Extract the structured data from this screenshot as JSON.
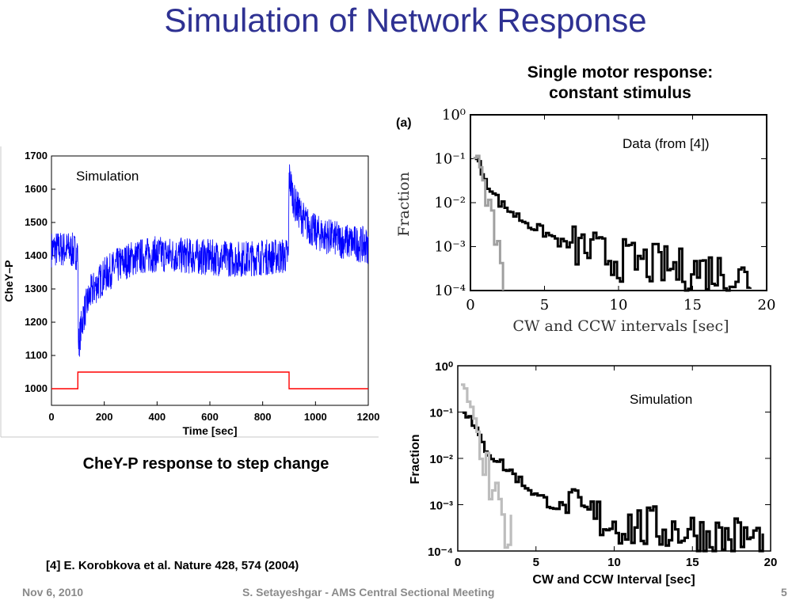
{
  "slide": {
    "title": "Simulation of Network Response",
    "right_heading_line1": "Single motor response:",
    "right_heading_line2": "constant stimulus",
    "left_caption": "CheY-P response to step change",
    "reference": "[4] E. Korobkova et al. Nature 428, 574 (2004)",
    "footer_date": "Nov 6, 2010",
    "footer_author": "S. Setayeshgar - AMS Central Sectional Meeting",
    "footer_page": "5"
  },
  "chart_data": [
    {
      "type": "line",
      "annotation": "Simulation",
      "xlabel": "Time [sec]",
      "ylabel": "CheY–P",
      "xlim": [
        0,
        1200
      ],
      "ylim": [
        950,
        1700
      ],
      "xticks": [
        0,
        200,
        400,
        600,
        800,
        1000,
        1200
      ],
      "yticks": [
        1000,
        1100,
        1200,
        1300,
        1400,
        1500,
        1600,
        1700
      ],
      "series": [
        {
          "color": "#0000ff",
          "style": "noisy",
          "x": [
            0,
            60,
            100,
            102,
            120,
            150,
            200,
            250,
            300,
            350,
            400,
            500,
            600,
            700,
            800,
            898,
            900,
            920,
            960,
            1000,
            1100,
            1200
          ],
          "y": [
            1420,
            1420,
            1410,
            1130,
            1220,
            1290,
            1340,
            1370,
            1390,
            1400,
            1405,
            1400,
            1395,
            1390,
            1395,
            1400,
            1640,
            1560,
            1500,
            1470,
            1445,
            1430
          ],
          "noise": 55
        },
        {
          "color": "#ff0000",
          "style": "step",
          "x": [
            0,
            100,
            100,
            900,
            900,
            1200
          ],
          "y": [
            1000,
            1000,
            1050,
            1050,
            1000,
            1000
          ]
        }
      ],
      "grid": false
    },
    {
      "type": "line",
      "panel_label": "(a)",
      "annotation": "Data (from [4])",
      "xlabel": "CW and CCW intervals [sec]",
      "ylabel": "Fraction",
      "xlim": [
        0,
        20
      ],
      "yscale": "log",
      "ylim": [
        0.0001,
        1
      ],
      "xticks": [
        0,
        5,
        10,
        15,
        20
      ],
      "ytick_labels": [
        "10⁰",
        "10⁻¹",
        "10⁻²",
        "10⁻³",
        "10⁻⁴"
      ],
      "series": [
        {
          "color": "#000000",
          "x": [
            0.3,
            0.5,
            1,
            1.5,
            2,
            3,
            4,
            5,
            6,
            7,
            8,
            9,
            10,
            12,
            14,
            16,
            18,
            19
          ],
          "y": [
            0.1,
            0.07,
            0.03,
            0.015,
            0.009,
            0.005,
            0.003,
            0.002,
            0.0012,
            0.001,
            0.0008,
            0.0006,
            0.0005,
            0.0004,
            0.0003,
            0.0003,
            0.0002,
            0.0002
          ]
        },
        {
          "color": "#a0a0a0",
          "x": [
            0.2,
            0.5,
            0.8,
            1.2,
            1.5,
            1.8,
            2.0,
            2.2
          ],
          "y": [
            0.12,
            0.1,
            0.04,
            0.01,
            0.003,
            0.001,
            0.0005,
            0.0002
          ]
        }
      ]
    },
    {
      "type": "line",
      "annotation": "Simulation",
      "xlabel": "CW and CCW Interval [sec]",
      "ylabel": "Fraction",
      "xlim": [
        0,
        20
      ],
      "yscale": "log",
      "ylim": [
        0.0001,
        1
      ],
      "xticks": [
        0,
        5,
        10,
        15,
        20
      ],
      "ytick_labels": [
        "10⁰",
        "10⁻¹",
        "10⁻²",
        "10⁻³",
        "10⁻⁴"
      ],
      "series": [
        {
          "color": "#000000",
          "x": [
            0.3,
            0.6,
            1,
            1.5,
            2,
            3,
            4,
            5,
            6,
            7,
            8,
            9,
            10,
            12,
            14,
            16,
            18,
            19.5
          ],
          "y": [
            0.12,
            0.08,
            0.04,
            0.02,
            0.012,
            0.006,
            0.003,
            0.0015,
            0.001,
            0.0008,
            0.0006,
            0.0005,
            0.0004,
            0.0003,
            0.0003,
            0.0002,
            0.0002,
            0.00015
          ]
        },
        {
          "color": "#bdbdbd",
          "x": [
            0.2,
            0.5,
            0.8,
            1.2,
            1.5,
            2.0,
            2.5,
            3.0,
            3.5
          ],
          "y": [
            0.3,
            0.25,
            0.1,
            0.03,
            0.008,
            0.002,
            0.0007,
            0.0003,
            0.0002
          ]
        }
      ]
    }
  ]
}
